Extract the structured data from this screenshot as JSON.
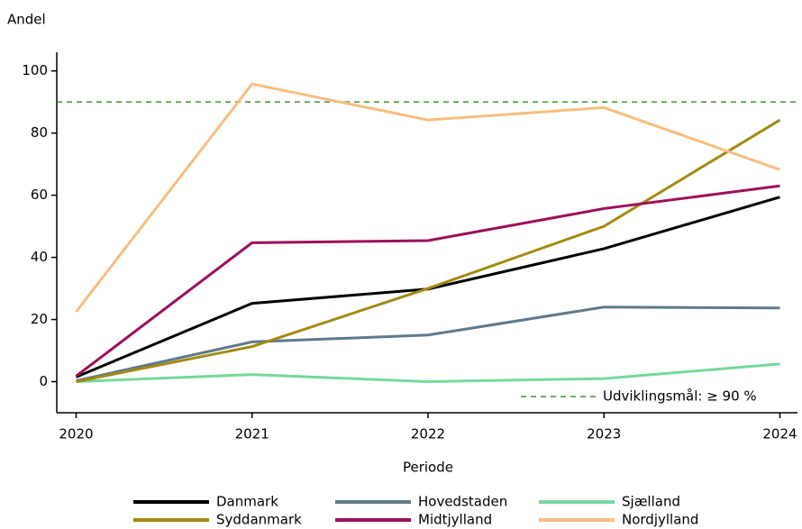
{
  "chart_data": {
    "type": "line",
    "y_label": "Andel",
    "x_label": "Periode",
    "x": [
      2020,
      2021,
      2022,
      2023,
      2024
    ],
    "xlim": [
      2019.89,
      2024.1
    ],
    "xticks": [
      2020,
      2021,
      2022,
      2023,
      2024
    ],
    "ylim": [
      -10,
      106
    ],
    "yticks": [
      0,
      20,
      40,
      60,
      80,
      100
    ],
    "series": [
      {
        "name": "Danmark",
        "color": "#000000",
        "values": [
          1.5,
          25.2,
          29.8,
          42.8,
          59.4
        ]
      },
      {
        "name": "Hovedstaden",
        "color": "#5f7a8c",
        "values": [
          0.3,
          12.8,
          15,
          24,
          23.7
        ]
      },
      {
        "name": "Sjælland",
        "color": "#74d99b",
        "values": [
          0,
          2.3,
          0,
          1,
          5.7
        ]
      },
      {
        "name": "Syddanmark",
        "color": "#a38a12",
        "values": [
          0,
          11.3,
          30,
          50,
          84.2
        ]
      },
      {
        "name": "Midtjylland",
        "color": "#9c0f5a",
        "values": [
          1.8,
          44.7,
          45.4,
          55.7,
          63
        ]
      },
      {
        "name": "Nordjylland",
        "color": "#f9bd7f",
        "values": [
          22.5,
          95.8,
          84.2,
          88.2,
          68.2
        ]
      }
    ],
    "reference_line": {
      "value": 90,
      "label": "Udviklingsmål: ≥ 90 %",
      "color": "#3a9a2a"
    }
  }
}
